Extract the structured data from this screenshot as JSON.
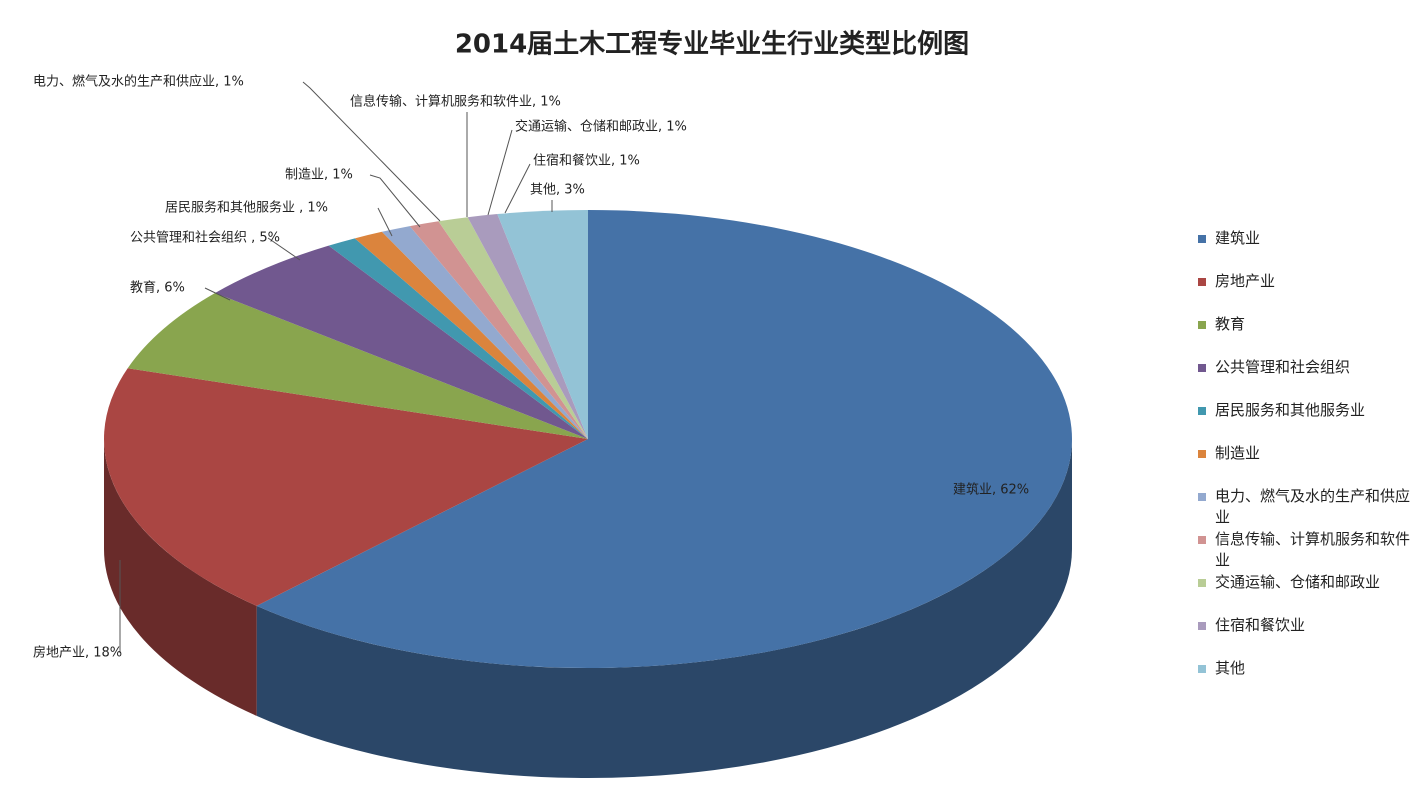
{
  "chart_data": {
    "type": "pie3d",
    "title": "2014届土木工程专业毕业生行业类型比例图",
    "categories": [
      "建筑业",
      "房地产业",
      "教育",
      "公共管理和社会组织",
      "居民服务和其他服务业",
      "制造业",
      "电力、燃气及水的生产和供应业",
      "信息传输、计算机服务和软件业",
      "交通运输、仓储和邮政业",
      "住宿和餐饮业",
      "其他"
    ],
    "values": [
      62,
      18,
      6,
      5,
      1,
      1,
      1,
      1,
      1,
      1,
      3
    ],
    "value_labels": [
      "建筑业, 62%",
      "房地产业, 18%",
      "教育, 6%",
      "公共管理和社会组织 , 5%",
      "居民服务和其他服务业 , 1%",
      "制造业, 1%",
      "电力、燃气及水的生产和供应业, 1%",
      "信息传输、计算机服务和软件业, 1%",
      "交通运输、仓储和邮政业, 1%",
      "住宿和餐饮业, 1%",
      "其他, 3%"
    ],
    "colors": [
      "#4572a7",
      "#aa4643",
      "#89a54e",
      "#71588f",
      "#4198af",
      "#db843d",
      "#93a9cf",
      "#d19392",
      "#b9cd96",
      "#a99bbd",
      "#93c3d6"
    ]
  }
}
